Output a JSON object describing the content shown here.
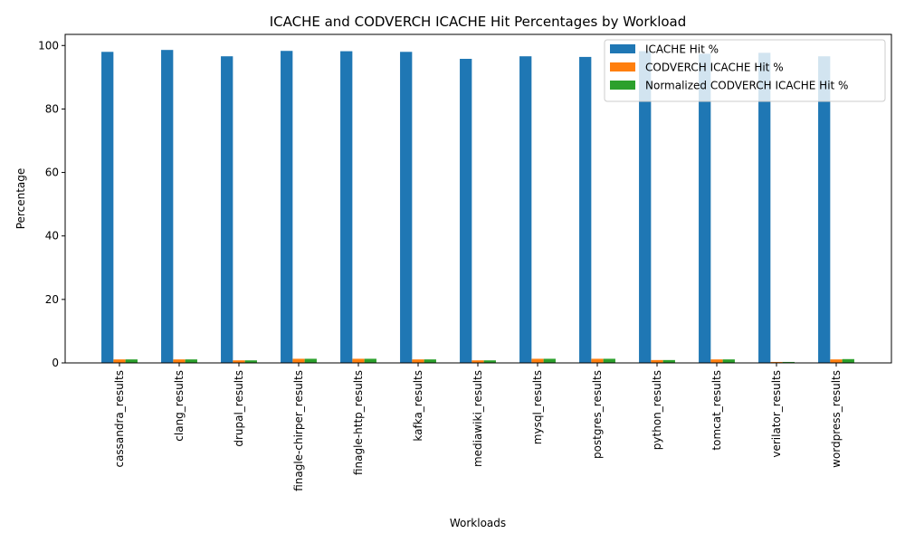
{
  "chart_data": {
    "type": "bar",
    "title": "ICACHE and CODVERCH ICACHE Hit Percentages by Workload",
    "xlabel": "Workloads",
    "ylabel": "Percentage",
    "ylim": [
      0,
      103.5
    ],
    "yticks": [
      0,
      20,
      40,
      60,
      80,
      100
    ],
    "grid": false,
    "legend_position": "top-right",
    "categories": [
      "cassandra_results",
      "clang_results",
      "drupal_results",
      "finagle-chirper_results",
      "finagle-http_results",
      "kafka_results",
      "mediawiki_results",
      "mysql_results",
      "postgres_results",
      "python_results",
      "tomcat_results",
      "verilator_results",
      "wordpress_results"
    ],
    "series": [
      {
        "name": "ICACHE Hit %",
        "color": "#1f77b4",
        "values": [
          98.0,
          98.6,
          96.6,
          98.3,
          98.2,
          98.0,
          95.8,
          96.6,
          96.4,
          98.2,
          97.4,
          97.7,
          96.6
        ]
      },
      {
        "name": "CODVERCH ICACHE Hit %",
        "color": "#ff7f0e",
        "values": [
          1.1,
          1.1,
          0.8,
          1.3,
          1.3,
          1.1,
          0.8,
          1.3,
          1.3,
          0.9,
          1.1,
          0.3,
          1.1
        ]
      },
      {
        "name": "Normalized CODVERCH ICACHE Hit %",
        "color": "#2ca02c",
        "values": [
          1.1,
          1.1,
          0.8,
          1.3,
          1.3,
          1.1,
          0.8,
          1.3,
          1.3,
          0.9,
          1.1,
          0.3,
          1.2
        ]
      }
    ]
  }
}
